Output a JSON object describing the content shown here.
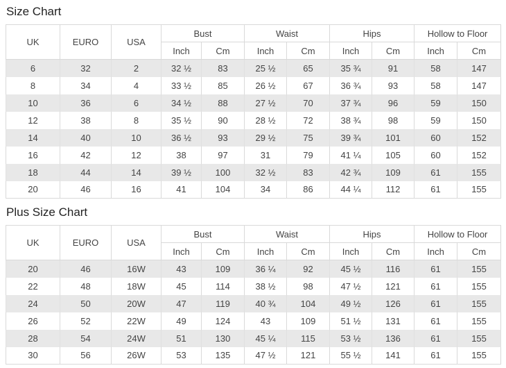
{
  "colors": {
    "background": "#ffffff",
    "stripe": "#e8e8e8",
    "border": "#d9d9d9",
    "text": "#444444",
    "title": "#222222"
  },
  "size_chart": {
    "title": "Size Chart",
    "header": {
      "uk": "UK",
      "euro": "EURO",
      "usa": "USA",
      "groups": [
        "Bust",
        "Waist",
        "Hips",
        "Hollow to Floor"
      ],
      "units": {
        "inch": "Inch",
        "cm": "Cm"
      }
    },
    "rows": [
      [
        "6",
        "32",
        "2",
        "32 ½",
        "83",
        "25 ½",
        "65",
        "35 ¾",
        "91",
        "58",
        "147"
      ],
      [
        "8",
        "34",
        "4",
        "33 ½",
        "85",
        "26 ½",
        "67",
        "36 ¾",
        "93",
        "58",
        "147"
      ],
      [
        "10",
        "36",
        "6",
        "34 ½",
        "88",
        "27 ½",
        "70",
        "37 ¾",
        "96",
        "59",
        "150"
      ],
      [
        "12",
        "38",
        "8",
        "35 ½",
        "90",
        "28 ½",
        "72",
        "38 ¾",
        "98",
        "59",
        "150"
      ],
      [
        "14",
        "40",
        "10",
        "36 ½",
        "93",
        "29 ½",
        "75",
        "39 ¾",
        "101",
        "60",
        "152"
      ],
      [
        "16",
        "42",
        "12",
        "38",
        "97",
        "31",
        "79",
        "41 ¼",
        "105",
        "60",
        "152"
      ],
      [
        "18",
        "44",
        "14",
        "39 ½",
        "100",
        "32 ½",
        "83",
        "42 ¾",
        "109",
        "61",
        "155"
      ],
      [
        "20",
        "46",
        "16",
        "41",
        "104",
        "34",
        "86",
        "44 ¼",
        "112",
        "61",
        "155"
      ]
    ]
  },
  "plus_size_chart": {
    "title": "Plus Size Chart",
    "header": {
      "uk": "UK",
      "euro": "EURO",
      "usa": "USA",
      "groups": [
        "Bust",
        "Waist",
        "Hips",
        "Hollow to Floor"
      ],
      "units": {
        "inch": "Inch",
        "cm": "Cm"
      }
    },
    "rows": [
      [
        "20",
        "46",
        "16W",
        "43",
        "109",
        "36 ¼",
        "92",
        "45 ½",
        "116",
        "61",
        "155"
      ],
      [
        "22",
        "48",
        "18W",
        "45",
        "114",
        "38 ½",
        "98",
        "47 ½",
        "121",
        "61",
        "155"
      ],
      [
        "24",
        "50",
        "20W",
        "47",
        "119",
        "40 ¾",
        "104",
        "49 ½",
        "126",
        "61",
        "155"
      ],
      [
        "26",
        "52",
        "22W",
        "49",
        "124",
        "43",
        "109",
        "51 ½",
        "131",
        "61",
        "155"
      ],
      [
        "28",
        "54",
        "24W",
        "51",
        "130",
        "45 ¼",
        "115",
        "53 ½",
        "136",
        "61",
        "155"
      ],
      [
        "30",
        "56",
        "26W",
        "53",
        "135",
        "47 ½",
        "121",
        "55 ½",
        "141",
        "61",
        "155"
      ]
    ]
  }
}
